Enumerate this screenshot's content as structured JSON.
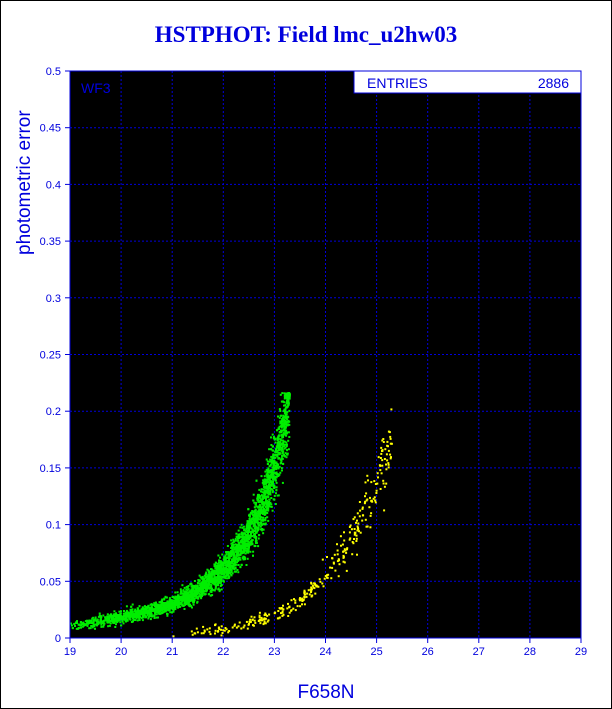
{
  "chart_data": {
    "type": "scatter",
    "title": "HSTPHOT: Field lmc_u2hw03",
    "xlabel": "F658N",
    "ylabel": "photometric error",
    "xlim": [
      19,
      29
    ],
    "ylim": [
      0,
      0.5
    ],
    "x_ticks": [
      "19",
      "20",
      "21",
      "22",
      "23",
      "24",
      "25",
      "26",
      "27",
      "28",
      "29"
    ],
    "y_ticks": [
      "0",
      "0.05",
      "0.1",
      "0.15",
      "0.2",
      "0.25",
      "0.3",
      "0.35",
      "0.4",
      "0.45",
      "0.5"
    ],
    "grid": true,
    "panel_label": "WF3",
    "stats": {
      "label": "ENTRIES",
      "value": "2886"
    },
    "series": [
      {
        "color": "#00ee00",
        "upper_cutoff": 0.216,
        "points_n": 3600,
        "trend": [
          [
            19.0,
            0.011
          ],
          [
            19.5,
            0.014
          ],
          [
            20.0,
            0.018
          ],
          [
            20.5,
            0.023
          ],
          [
            21.0,
            0.03
          ],
          [
            21.5,
            0.042
          ],
          [
            22.0,
            0.06
          ],
          [
            22.5,
            0.09
          ],
          [
            22.8,
            0.12
          ],
          [
            23.0,
            0.15
          ],
          [
            23.2,
            0.19
          ],
          [
            23.3,
            0.216
          ]
        ]
      },
      {
        "color": "#ffff00",
        "points_n": 330,
        "trend": [
          [
            21.0,
            0.003
          ],
          [
            21.5,
            0.005
          ],
          [
            22.0,
            0.008
          ],
          [
            22.5,
            0.013
          ],
          [
            23.0,
            0.02
          ],
          [
            23.5,
            0.032
          ],
          [
            24.0,
            0.055
          ],
          [
            24.5,
            0.085
          ],
          [
            24.8,
            0.115
          ],
          [
            25.0,
            0.14
          ],
          [
            25.3,
            0.175
          ]
        ]
      }
    ]
  }
}
